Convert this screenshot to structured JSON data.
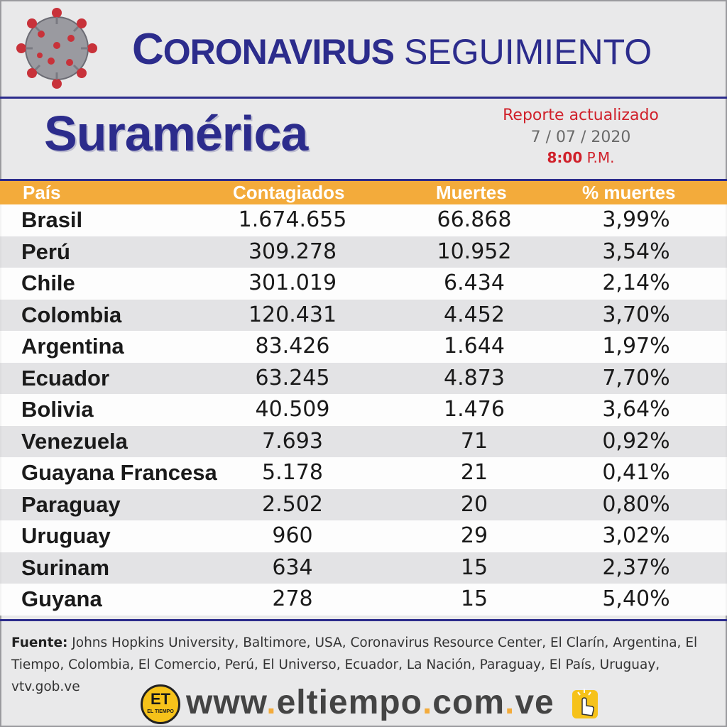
{
  "header": {
    "title_first_letter": "C",
    "title_rest": "ORONAVIRUS",
    "title_second": "SEGUIMIENTO"
  },
  "region": "Suramérica",
  "report": {
    "line1": "Reporte actualizado",
    "date": "7 / 07 / 2020",
    "time": "8:00",
    "ampm": "P.M."
  },
  "table": {
    "headers": [
      "País",
      "Contagiados",
      "Muertes",
      "% muertes"
    ],
    "rows": [
      [
        "Brasil",
        "1.674.655",
        "66.868",
        "3,99%"
      ],
      [
        "Perú",
        "309.278",
        "10.952",
        "3,54%"
      ],
      [
        "Chile",
        "301.019",
        "6.434",
        "2,14%"
      ],
      [
        "Colombia",
        "120.431",
        "4.452",
        "3,70%"
      ],
      [
        "Argentina",
        "83.426",
        "1.644",
        "1,97%"
      ],
      [
        "Ecuador",
        "63.245",
        "4.873",
        "7,70%"
      ],
      [
        "Bolivia",
        "40.509",
        "1.476",
        "3,64%"
      ],
      [
        "Venezuela",
        "7.693",
        "71",
        "0,92%"
      ],
      [
        "Guayana Francesa",
        "5.178",
        "21",
        "0,41%"
      ],
      [
        "Paraguay",
        "2.502",
        "20",
        "0,80%"
      ],
      [
        "Uruguay",
        "960",
        "29",
        "3,02%"
      ],
      [
        "Surinam",
        "634",
        "15",
        "2,37%"
      ],
      [
        "Guyana",
        "278",
        "15",
        "5,40%"
      ]
    ]
  },
  "source": {
    "label": "Fuente:",
    "text": "Johns Hopkins University, Baltimore, USA, Coronavirus Resource Center,  El Clarín, Argentina, El Tiempo, Colombia, El Comercio, Perú, El Universo, Ecuador, La Nación, Paraguay, El País, Uruguay, vtv.gob.ve"
  },
  "footer": {
    "logo_text": "ET",
    "logo_sub": "EL TIEMPO",
    "url_parts": [
      "www",
      "eltiempo",
      "com",
      "ve"
    ]
  },
  "colors": {
    "brand_navy": "#2c2c8c",
    "header_orange": "#f3ab3b",
    "report_red": "#d0202a"
  }
}
